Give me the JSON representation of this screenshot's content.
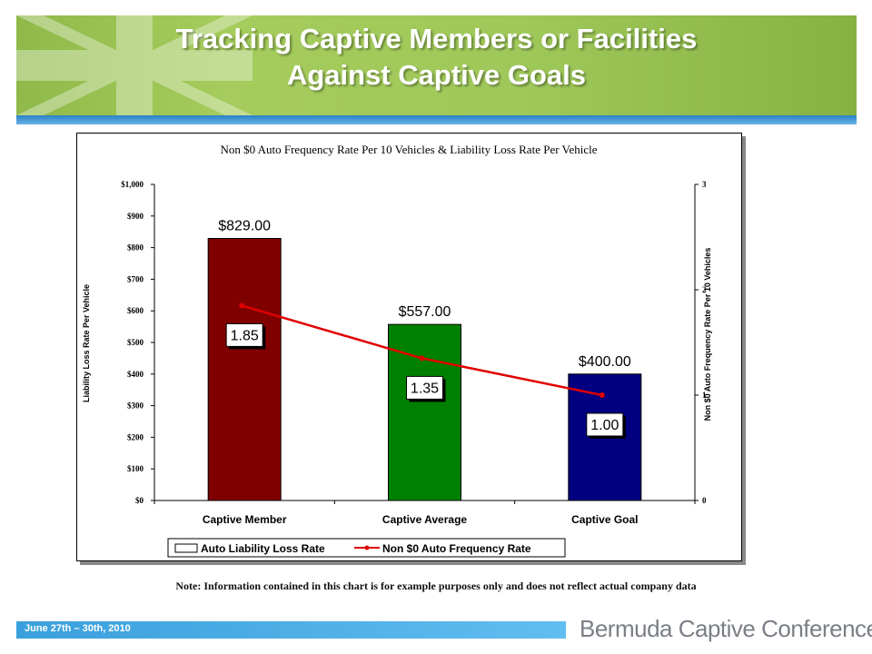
{
  "header": {
    "title_line1": "Tracking Captive Members or Facilities",
    "title_line2": "Against Captive Goals"
  },
  "note": "Note:  Information contained in this chart is for example purposes only and does not reflect actual company data",
  "footer": {
    "date": "June 27th – 30th, 2010",
    "brand": "Bermuda Captive Conference"
  },
  "colors": {
    "banner": "#9fc85a",
    "stripe": "#3aa0dd",
    "line": "#e00000"
  },
  "chart_data": {
    "type": "bar",
    "title": "Non $0 Auto Frequency Rate Per 10 Vehicles & Liability Loss Rate Per Vehicle",
    "categories": [
      "Captive Member",
      "Captive Average",
      "Captive Goal"
    ],
    "ylabel": "Liability Loss Rate Per Vehicle",
    "y2label": "Non $0 Auto Frequency Rate Per 10 Vehicles",
    "ylim": [
      0,
      1000
    ],
    "y2lim": [
      0,
      3
    ],
    "yticks": [
      "$0",
      "$100",
      "$200",
      "$300",
      "$400",
      "$500",
      "$600",
      "$700",
      "$800",
      "$900",
      "$1,000"
    ],
    "y2ticks": [
      "0",
      "1",
      "2",
      "3"
    ],
    "series": [
      {
        "name": "Auto Liability Loss Rate",
        "type": "bar",
        "values": [
          829,
          557,
          400
        ],
        "labels": [
          "$829.00",
          "$557.00",
          "$400.00"
        ],
        "colors": [
          "#800000",
          "#008000",
          "#000080"
        ]
      },
      {
        "name": "Non $0 Auto Frequency Rate",
        "type": "line",
        "axis": "right",
        "values": [
          1.85,
          1.35,
          1.0
        ],
        "labels": [
          "1.85",
          "1.35",
          "1.00"
        ],
        "color": "#e00000"
      }
    ],
    "legend_position": "bottom",
    "grid": false
  }
}
